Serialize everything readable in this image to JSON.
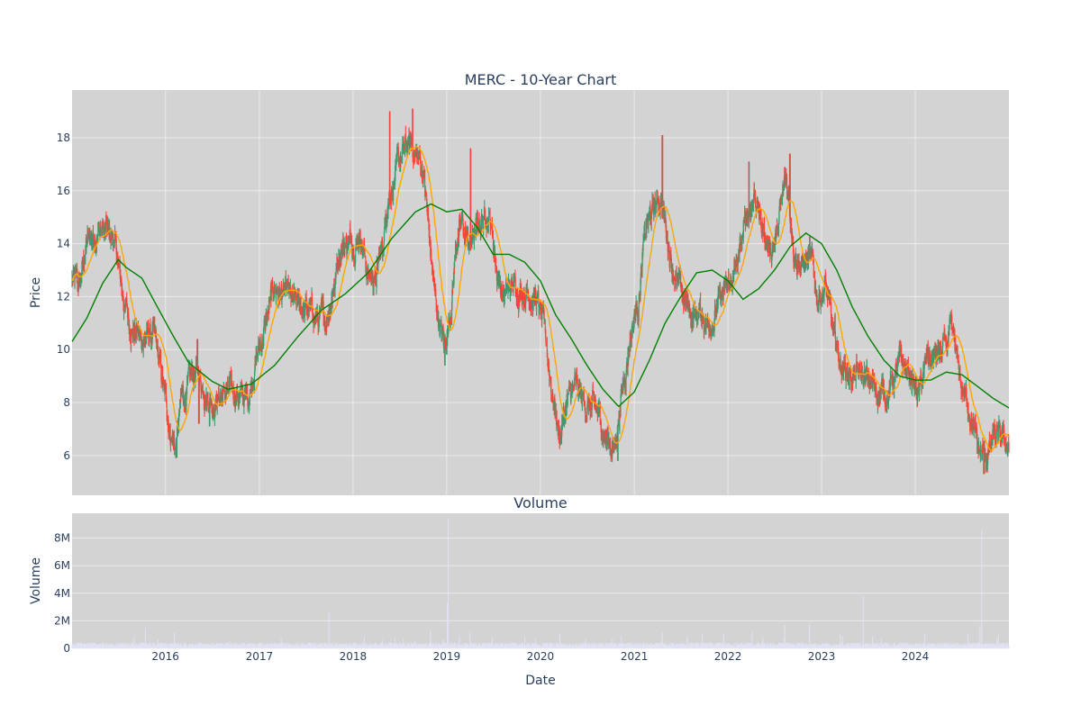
{
  "chart_data": [
    {
      "type": "candlestick",
      "title": "MERC - 10-Year Chart",
      "ylabel": "Price",
      "ylim": [
        4.5,
        19.8
      ],
      "grid": true,
      "xlim": [
        "2015-01-02",
        "2024-12-31"
      ],
      "yticks": [
        6,
        8,
        10,
        12,
        14,
        16,
        18
      ],
      "colors": {
        "increasing": "#3d9970",
        "decreasing": "#ff4136",
        "short_ma": "#ffa500",
        "long_ma": "#008000",
        "plot_bg": "#d3d3d3",
        "grid": "#ebebeb"
      },
      "price_anchors": [
        [
          "2015-01-02",
          12.6
        ],
        [
          "2015-02-01",
          12.4
        ],
        [
          "2015-03-01",
          14.0
        ],
        [
          "2015-04-15",
          14.6
        ],
        [
          "2015-06-15",
          14.1
        ],
        [
          "2015-07-15",
          12.2
        ],
        [
          "2015-08-15",
          11.0
        ],
        [
          "2015-10-01",
          10.4
        ],
        [
          "2015-11-15",
          10.6
        ],
        [
          "2015-12-15",
          9.0
        ],
        [
          "2016-01-20",
          7.0
        ],
        [
          "2016-02-10",
          6.3
        ],
        [
          "2016-03-01",
          8.0
        ],
        [
          "2016-04-01",
          8.6
        ],
        [
          "2016-05-01",
          9.2
        ],
        [
          "2016-06-01",
          8.6
        ],
        [
          "2016-07-01",
          8.1
        ],
        [
          "2016-08-01",
          8.3
        ],
        [
          "2016-10-01",
          8.4
        ],
        [
          "2016-11-15",
          8.1
        ],
        [
          "2016-12-15",
          9.6
        ],
        [
          "2017-01-15",
          10.5
        ],
        [
          "2017-03-01",
          12.3
        ],
        [
          "2017-04-15",
          12.0
        ],
        [
          "2017-05-15",
          11.6
        ],
        [
          "2017-06-15",
          11.6
        ],
        [
          "2017-08-01",
          11.3
        ],
        [
          "2017-09-15",
          11.0
        ],
        [
          "2017-10-15",
          12.4
        ],
        [
          "2017-11-15",
          14.0
        ],
        [
          "2018-01-01",
          14.2
        ],
        [
          "2018-02-01",
          14.4
        ],
        [
          "2018-03-01",
          12.8
        ],
        [
          "2018-04-01",
          12.7
        ],
        [
          "2018-05-01",
          14.2
        ],
        [
          "2018-05-15",
          15.8
        ],
        [
          "2018-06-15",
          16.6
        ],
        [
          "2018-08-01",
          17.7
        ],
        [
          "2018-09-01",
          17.5
        ],
        [
          "2018-10-01",
          16.8
        ],
        [
          "2018-11-15",
          12.0
        ],
        [
          "2018-12-24",
          10.0
        ],
        [
          "2019-01-15",
          11.5
        ],
        [
          "2019-02-10",
          14.3
        ],
        [
          "2019-03-01",
          14.6
        ],
        [
          "2019-04-01",
          13.9
        ],
        [
          "2019-05-01",
          14.6
        ],
        [
          "2019-06-15",
          15.3
        ],
        [
          "2019-07-15",
          13.0
        ],
        [
          "2019-08-15",
          12.0
        ],
        [
          "2019-09-15",
          12.4
        ],
        [
          "2019-11-01",
          12.3
        ],
        [
          "2019-12-15",
          12.0
        ],
        [
          "2020-01-20",
          10.5
        ],
        [
          "2020-02-15",
          8.5
        ],
        [
          "2020-03-15",
          6.8
        ],
        [
          "2020-04-15",
          8.0
        ],
        [
          "2020-05-15",
          8.5
        ],
        [
          "2020-06-15",
          8.0
        ],
        [
          "2020-07-15",
          7.8
        ],
        [
          "2020-08-15",
          7.5
        ],
        [
          "2020-09-15",
          6.6
        ],
        [
          "2020-10-15",
          6.3
        ],
        [
          "2020-11-15",
          8.5
        ],
        [
          "2020-12-15",
          10.5
        ],
        [
          "2021-01-15",
          11.8
        ],
        [
          "2021-02-15",
          14.5
        ],
        [
          "2021-03-15",
          15.2
        ],
        [
          "2021-04-15",
          15.8
        ],
        [
          "2021-05-15",
          14.0
        ],
        [
          "2021-06-15",
          12.5
        ],
        [
          "2021-07-15",
          11.8
        ],
        [
          "2021-08-15",
          11.3
        ],
        [
          "2021-09-15",
          11.4
        ],
        [
          "2021-10-15",
          11.0
        ],
        [
          "2021-11-15",
          11.5
        ],
        [
          "2021-12-15",
          12.0
        ],
        [
          "2022-01-15",
          12.5
        ],
        [
          "2022-02-15",
          13.5
        ],
        [
          "2022-03-15",
          15.0
        ],
        [
          "2022-04-15",
          16.0
        ],
        [
          "2022-05-15",
          14.5
        ],
        [
          "2022-06-15",
          13.8
        ],
        [
          "2022-07-15",
          14.5
        ],
        [
          "2022-08-15",
          16.5
        ],
        [
          "2022-09-15",
          14.0
        ],
        [
          "2022-10-15",
          13.2
        ],
        [
          "2022-11-15",
          13.5
        ],
        [
          "2022-12-15",
          12.0
        ],
        [
          "2023-01-15",
          12.5
        ],
        [
          "2023-02-15",
          10.5
        ],
        [
          "2023-03-15",
          9.5
        ],
        [
          "2023-05-01",
          9.0
        ],
        [
          "2023-06-15",
          8.9
        ],
        [
          "2023-08-01",
          8.5
        ],
        [
          "2023-09-15",
          8.4
        ],
        [
          "2023-11-01",
          9.4
        ],
        [
          "2023-12-15",
          9.0
        ],
        [
          "2024-01-15",
          8.2
        ],
        [
          "2024-02-15",
          9.6
        ],
        [
          "2024-04-15",
          9.8
        ],
        [
          "2024-05-15",
          10.5
        ],
        [
          "2024-06-01",
          10.0
        ],
        [
          "2024-07-01",
          8.5
        ],
        [
          "2024-08-01",
          7.8
        ],
        [
          "2024-09-01",
          6.2
        ],
        [
          "2024-10-01",
          5.9
        ],
        [
          "2024-11-01",
          6.6
        ],
        [
          "2024-12-31",
          6.5
        ]
      ],
      "long_ma_anchors": [
        [
          "2015-01-02",
          10.3
        ],
        [
          "2015-03-01",
          11.2
        ],
        [
          "2015-05-01",
          12.5
        ],
        [
          "2015-07-01",
          13.4
        ],
        [
          "2015-08-01",
          13.1
        ],
        [
          "2015-10-01",
          12.7
        ],
        [
          "2015-12-01",
          11.6
        ],
        [
          "2016-02-01",
          10.5
        ],
        [
          "2016-04-01",
          9.5
        ],
        [
          "2016-07-01",
          8.8
        ],
        [
          "2016-09-01",
          8.5
        ],
        [
          "2016-12-01",
          8.7
        ],
        [
          "2017-03-01",
          9.4
        ],
        [
          "2017-06-01",
          10.5
        ],
        [
          "2017-09-01",
          11.5
        ],
        [
          "2017-12-01",
          12.1
        ],
        [
          "2018-03-01",
          12.9
        ],
        [
          "2018-06-01",
          14.2
        ],
        [
          "2018-09-01",
          15.2
        ],
        [
          "2018-11-01",
          15.5
        ],
        [
          "2019-01-01",
          15.2
        ],
        [
          "2019-03-01",
          15.3
        ],
        [
          "2019-05-01",
          14.6
        ],
        [
          "2019-07-01",
          13.6
        ],
        [
          "2019-09-01",
          13.6
        ],
        [
          "2019-11-01",
          13.3
        ],
        [
          "2020-01-01",
          12.6
        ],
        [
          "2020-03-01",
          11.3
        ],
        [
          "2020-05-01",
          10.4
        ],
        [
          "2020-07-01",
          9.4
        ],
        [
          "2020-09-01",
          8.5
        ],
        [
          "2020-11-01",
          7.85
        ],
        [
          "2021-01-01",
          8.4
        ],
        [
          "2021-03-01",
          9.6
        ],
        [
          "2021-05-01",
          11.0
        ],
        [
          "2021-07-01",
          12.0
        ],
        [
          "2021-09-01",
          12.9
        ],
        [
          "2021-11-01",
          13.0
        ],
        [
          "2022-01-01",
          12.6
        ],
        [
          "2022-03-01",
          11.9
        ],
        [
          "2022-05-01",
          12.3
        ],
        [
          "2022-07-01",
          13.0
        ],
        [
          "2022-09-01",
          13.9
        ],
        [
          "2022-11-01",
          14.4
        ],
        [
          "2023-01-01",
          14.0
        ],
        [
          "2023-03-01",
          13.0
        ],
        [
          "2023-05-01",
          11.6
        ],
        [
          "2023-07-01",
          10.5
        ],
        [
          "2023-09-01",
          9.6
        ],
        [
          "2023-11-01",
          9.0
        ],
        [
          "2024-01-01",
          8.85
        ],
        [
          "2024-03-01",
          8.85
        ],
        [
          "2024-05-01",
          9.15
        ],
        [
          "2024-07-01",
          9.05
        ],
        [
          "2024-09-01",
          8.6
        ],
        [
          "2024-11-01",
          8.15
        ],
        [
          "2024-12-31",
          7.8
        ]
      ],
      "high_spikes": [
        [
          "2018-05-25",
          19.0
        ],
        [
          "2018-08-20",
          19.1
        ],
        [
          "2019-04-05",
          17.6
        ],
        [
          "2021-04-20",
          18.1
        ],
        [
          "2022-03-25",
          17.1
        ],
        [
          "2022-08-30",
          17.4
        ],
        [
          "2016-05-05",
          10.4
        ],
        [
          "2024-05-20",
          11.1
        ]
      ],
      "low_spikes": [
        [
          "2016-02-12",
          5.9
        ],
        [
          "2020-03-20",
          6.4
        ],
        [
          "2020-10-30",
          5.8
        ],
        [
          "2024-09-25",
          5.3
        ],
        [
          "2018-12-24",
          9.4
        ],
        [
          "2016-06-20",
          7.1
        ],
        [
          "2016-05-10",
          7.2
        ]
      ]
    },
    {
      "type": "bar",
      "title": "Volume",
      "ylabel": "Volume",
      "xlabel": "Date",
      "ylim": [
        0,
        9800000
      ],
      "grid": true,
      "yticks": [
        0,
        2000000,
        4000000,
        6000000,
        8000000
      ],
      "ytick_labels": [
        "0",
        "2M",
        "4M",
        "6M",
        "8M"
      ],
      "color": "#e2e2f5",
      "baseline": 280000,
      "volume_spikes": [
        [
          "2017-09-29",
          2600000
        ],
        [
          "2019-01-07",
          9400000
        ],
        [
          "2019-01-03",
          3300000
        ],
        [
          "2015-10-15",
          1500000
        ],
        [
          "2016-02-05",
          1200000
        ],
        [
          "2021-04-20",
          1200000
        ],
        [
          "2022-08-10",
          1700000
        ],
        [
          "2022-11-15",
          1700000
        ],
        [
          "2023-06-12",
          3800000
        ],
        [
          "2023-07-30",
          1800000
        ],
        [
          "2024-09-16",
          8600000
        ],
        [
          "2024-09-09",
          1600000
        ],
        [
          "2018-10-30",
          1300000
        ],
        [
          "2019-04-02",
          1200000
        ],
        [
          "2020-03-17",
          1100000
        ],
        [
          "2021-12-15",
          1100000
        ],
        [
          "2024-11-20",
          1000000
        ],
        [
          "2022-04-05",
          1200000
        ],
        [
          "2023-03-15",
          1000000
        ],
        [
          "2020-11-10",
          900000
        ]
      ]
    }
  ],
  "axes": {
    "x_ticks": [
      "2016",
      "2017",
      "2018",
      "2019",
      "2020",
      "2021",
      "2022",
      "2023",
      "2024"
    ]
  }
}
